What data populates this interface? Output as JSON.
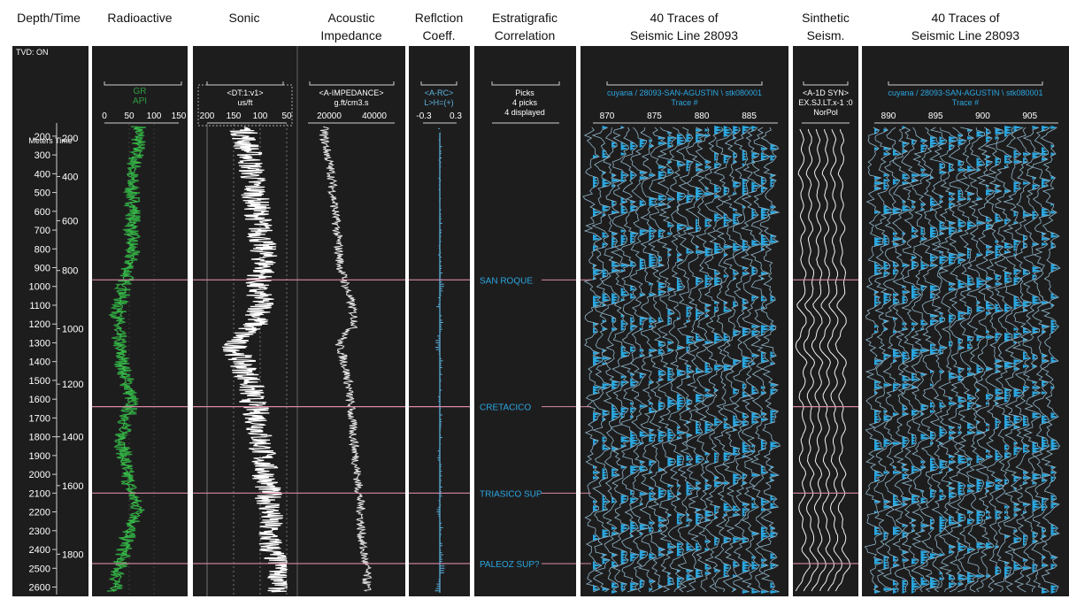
{
  "headers": [
    {
      "l1": "Depth/Time",
      "l2": ""
    },
    {
      "l1": "Radioactive",
      "l2": ""
    },
    {
      "l1": "Sonic",
      "l2": ""
    },
    {
      "l1": "Acoustic",
      "l2": "Impedance"
    },
    {
      "l1": "Reflction",
      "l2": "Coeff."
    },
    {
      "l1": "Estratigrafic",
      "l2": "Correlation"
    },
    {
      "l1": "40 Traces of",
      "l2": "Seismic Line 28093"
    },
    {
      "l1": "Sinthetic",
      "l2": "Seism."
    },
    {
      "l1": "40 Traces of",
      "l2": "Seismic Line 28093"
    }
  ],
  "tvd_label": "TVD: ON",
  "axis_header": "Meters Time",
  "gr": {
    "name": "GR",
    "unit": "API",
    "ticks": [
      "0",
      "50",
      "100",
      "150"
    ],
    "color": "#2e9e3e"
  },
  "dt": {
    "name": "<DT:1:v1>",
    "unit": "us/ft",
    "ticks": [
      "200",
      "150",
      "100",
      "50"
    ]
  },
  "ai": {
    "name": "<A-IMPEDANCE>",
    "unit": "g.ft/cm3.s",
    "ticks": [
      "20000",
      "40000"
    ]
  },
  "rc": {
    "name": "<A-RC>",
    "unit": "L>H=(+)",
    "ticks": [
      "-0.3",
      "0.3"
    ],
    "color": "#5ab4e0"
  },
  "picks_head": {
    "l1": "Picks",
    "l2": "4 picks",
    "l3": "4 displayed"
  },
  "seis1": {
    "name": "cuyana / 28093-SAN-AGUSTIN \\ stk080001",
    "axis": "Trace #",
    "ticks": [
      "870",
      "875",
      "880",
      "885"
    ]
  },
  "syn": {
    "name": "<A-1D SYN>",
    "sub": "EX.SJ.LT.x-1 :0",
    "pol": "NorPol"
  },
  "seis2": {
    "name": "cuyana / 28093-SAN-AGUSTIN \\ stk080001",
    "axis": "Trace #",
    "ticks": [
      "890",
      "895",
      "900",
      "905"
    ]
  },
  "colors": {
    "accent": "#2aa7e0",
    "pick": "#d88aa6",
    "panel": "#1e1d1e"
  },
  "chart_data": {
    "type": "line",
    "x_depth_m": [
      200,
      300,
      400,
      500,
      600,
      700,
      800,
      900,
      1000,
      1100,
      1200,
      1300,
      1400,
      1500,
      1600,
      1700,
      1800,
      1900,
      2000,
      2100,
      2200,
      2300,
      2400,
      2500,
      2600
    ],
    "depth_labels": [
      "200",
      "300",
      "400",
      "500",
      "600",
      "700",
      "800",
      "900",
      "1000",
      "1100",
      "1200",
      "1300",
      "1400",
      "1500",
      "1600",
      "1700",
      "1800",
      "1900",
      "2000",
      "2100",
      "2200",
      "2300",
      "2400",
      "2500",
      "2600"
    ],
    "time_labels": [
      "200",
      "400",
      "600",
      "800",
      "1000",
      "1200",
      "1400",
      "1600",
      "1800"
    ],
    "time_ms": [
      200,
      400,
      600,
      800,
      1000,
      1200,
      1400,
      1600,
      1800
    ],
    "time_depth_m": [
      210,
      415,
      650,
      915,
      1225,
      1520,
      1800,
      2060,
      2425
    ],
    "ylim": [
      130,
      2640
    ],
    "series": [
      {
        "name": "GR",
        "unit": "API",
        "xlim": [
          0,
          150
        ],
        "values": [
          70,
          65,
          55,
          55,
          60,
          55,
          55,
          50,
          40,
          30,
          25,
          30,
          35,
          45,
          55,
          45,
          35,
          40,
          45,
          55,
          70,
          50,
          40,
          30,
          20
        ]
      },
      {
        "name": "DT",
        "unit": "us/ft",
        "xlim": [
          200,
          50
        ],
        "values": [
          130,
          120,
          115,
          110,
          105,
          100,
          95,
          90,
          110,
          95,
          110,
          150,
          135,
          120,
          115,
          105,
          100,
          95,
          90,
          85,
          80,
          85,
          80,
          60,
          60
        ]
      },
      {
        "name": "A-IMPEDANCE",
        "unit": "g.ft/cm3.s",
        "xlim": [
          5000,
          55000
        ],
        "values": [
          15000,
          17000,
          19000,
          20000,
          21000,
          22000,
          23000,
          24000,
          27000,
          30000,
          32000,
          23000,
          26000,
          28000,
          29000,
          30000,
          31000,
          32000,
          33000,
          34000,
          35000,
          35000,
          36000,
          38000,
          38000
        ]
      },
      {
        "name": "A-RC",
        "unit": "L>H=(+)",
        "xlim": [
          -0.3,
          0.3
        ],
        "values": [
          0,
          0.02,
          -0.02,
          0.01,
          0,
          0.02,
          -0.01,
          0.02,
          0.05,
          -0.04,
          0.06,
          -0.08,
          0.04,
          0.03,
          -0.02,
          0.03,
          0.02,
          -0.02,
          0.03,
          0.02,
          -0.03,
          0.04,
          0.02,
          0.1,
          -0.06
        ]
      }
    ],
    "picks": [
      {
        "name": "SAN ROQUE",
        "depth": 965
      },
      {
        "name": "CRETACICO",
        "depth": 1640
      },
      {
        "name": "TRIASICO SUP",
        "depth": 2100
      },
      {
        "name": "PALEOZ SUP?",
        "depth": 2475
      }
    ]
  }
}
